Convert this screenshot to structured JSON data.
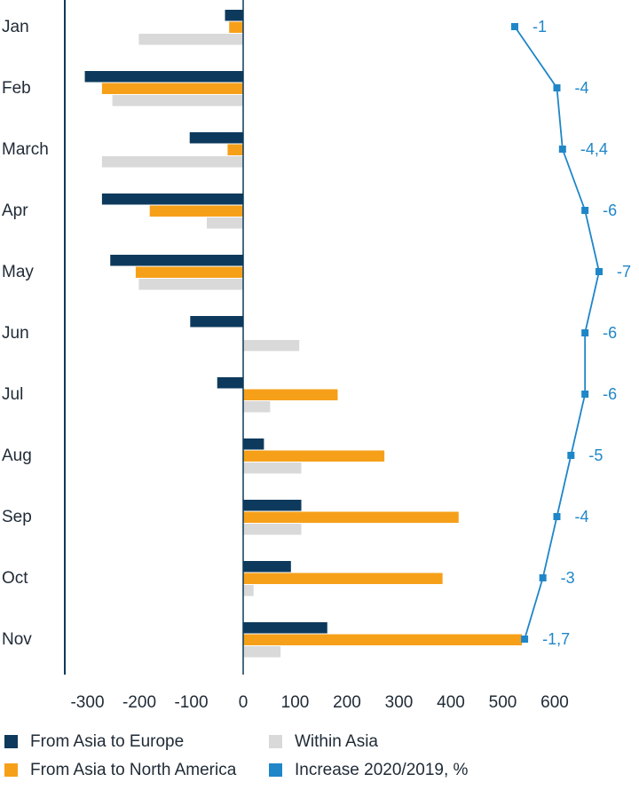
{
  "chart_data": {
    "type": "bar",
    "orientation": "horizontal",
    "categories": [
      "Jan",
      "Feb",
      "March",
      "Apr",
      "May",
      "Jun",
      "Jul",
      "Aug",
      "Sep",
      "Oct",
      "Nov"
    ],
    "series": [
      {
        "name": "From Asia to Europe",
        "color": "#0d3a5c",
        "values": [
          -35,
          -305,
          -103,
          -272,
          -256,
          -102,
          -50,
          40,
          112,
          92,
          162
        ]
      },
      {
        "name": "From Asia to North America",
        "color": "#f6a01a",
        "values": [
          -27,
          -272,
          -30,
          -180,
          -207,
          0,
          182,
          272,
          415,
          384,
          537
        ]
      },
      {
        "name": "Within Asia",
        "color": "#d9d9d9",
        "values": [
          -201,
          -252,
          -272,
          -70,
          -201,
          108,
          52,
          112,
          112,
          20,
          72
        ]
      }
    ],
    "line_series": {
      "name": "Increase 2020/2019, %",
      "color": "#1f86c8",
      "values": [
        -1,
        -4,
        -4.4,
        -6,
        -7,
        -6,
        -6,
        -5,
        -4,
        -3,
        -1.7
      ],
      "labels": [
        "-1",
        "-4",
        "-4,4",
        "-6",
        "-7",
        "-6",
        "-6",
        "-5",
        "-4",
        "-3",
        "-1,7"
      ]
    },
    "x_ticks": [
      -300,
      -200,
      -100,
      0,
      100,
      200,
      300,
      400,
      500,
      600
    ],
    "x_tick_labels": [
      "-300",
      "-200",
      "-100",
      "0",
      "100",
      "200",
      "300",
      "400",
      "500",
      "600"
    ],
    "xlim": [
      -345,
      745
    ],
    "legend": [
      {
        "label": "From Asia to Europe",
        "color": "#0d3a5c"
      },
      {
        "label": "Within Asia",
        "color": "#d9d9d9"
      },
      {
        "label": "From Asia to North America",
        "color": "#f6a01a"
      },
      {
        "label": "Increase 2020/2019, %",
        "color": "#1f86c8"
      }
    ],
    "title": "",
    "xlabel": "",
    "ylabel": ""
  }
}
